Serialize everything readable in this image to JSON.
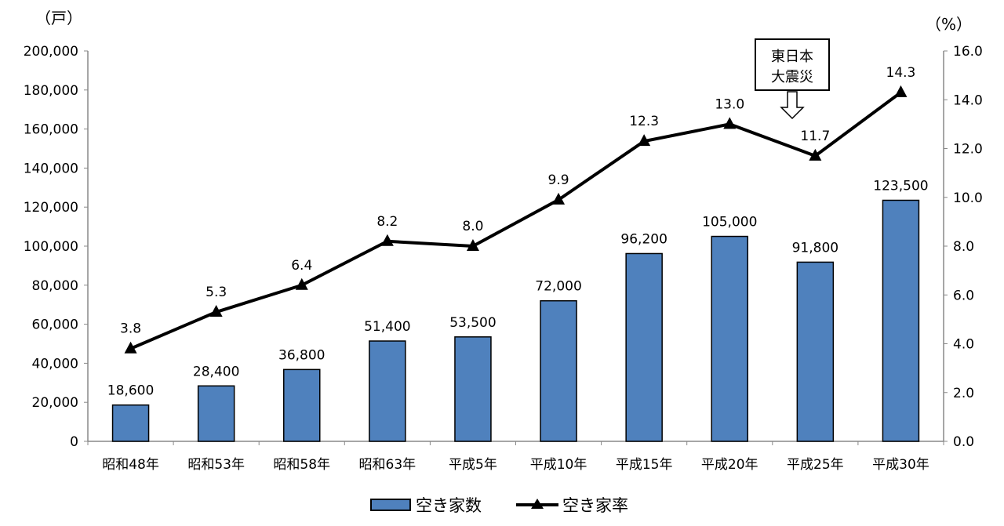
{
  "chart_data": {
    "type": "bar+line",
    "categories": [
      "昭和48年",
      "昭和53年",
      "昭和58年",
      "昭和63年",
      "平成5年",
      "平成10年",
      "平成15年",
      "平成20年",
      "平成25年",
      "平成30年"
    ],
    "series": [
      {
        "name": "空き家数",
        "type": "bar",
        "axis": "left",
        "color": "#4F81BD",
        "values": [
          18600,
          28400,
          36800,
          51400,
          53500,
          72000,
          96200,
          105000,
          91800,
          123500
        ],
        "labels": [
          "18,600",
          "28,400",
          "36,800",
          "51,400",
          "53,500",
          "72,000",
          "96,200",
          "105,000",
          "91,800",
          "123,500"
        ]
      },
      {
        "name": "空き家率",
        "type": "line",
        "axis": "right",
        "color": "#000000",
        "marker": "triangle",
        "values": [
          3.8,
          5.3,
          6.4,
          8.2,
          8.0,
          9.9,
          12.3,
          13.0,
          11.7,
          14.3
        ],
        "labels": [
          "3.8",
          "5.3",
          "6.4",
          "8.2",
          "8.0",
          "9.9",
          "12.3",
          "13.0",
          "11.7",
          "14.3"
        ]
      }
    ],
    "left_axis": {
      "unit": "（戸）",
      "ylim": [
        0,
        200000
      ],
      "ticks": [
        "0",
        "20,000",
        "40,000",
        "60,000",
        "80,000",
        "100,000",
        "120,000",
        "140,000",
        "160,000",
        "180,000",
        "200,000"
      ]
    },
    "right_axis": {
      "unit": "（%）",
      "ylim": [
        0,
        16
      ],
      "ticks": [
        "0.0",
        "2.0",
        "4.0",
        "6.0",
        "8.0",
        "10.0",
        "12.0",
        "14.0",
        "16.0"
      ]
    },
    "annotation": {
      "lines": [
        "東日本",
        "大震災"
      ],
      "between_categories": [
        "平成20年",
        "平成25年"
      ]
    },
    "legend": {
      "placement": "bottom",
      "items": [
        "空き家数",
        "空き家率"
      ]
    },
    "grid": false
  }
}
